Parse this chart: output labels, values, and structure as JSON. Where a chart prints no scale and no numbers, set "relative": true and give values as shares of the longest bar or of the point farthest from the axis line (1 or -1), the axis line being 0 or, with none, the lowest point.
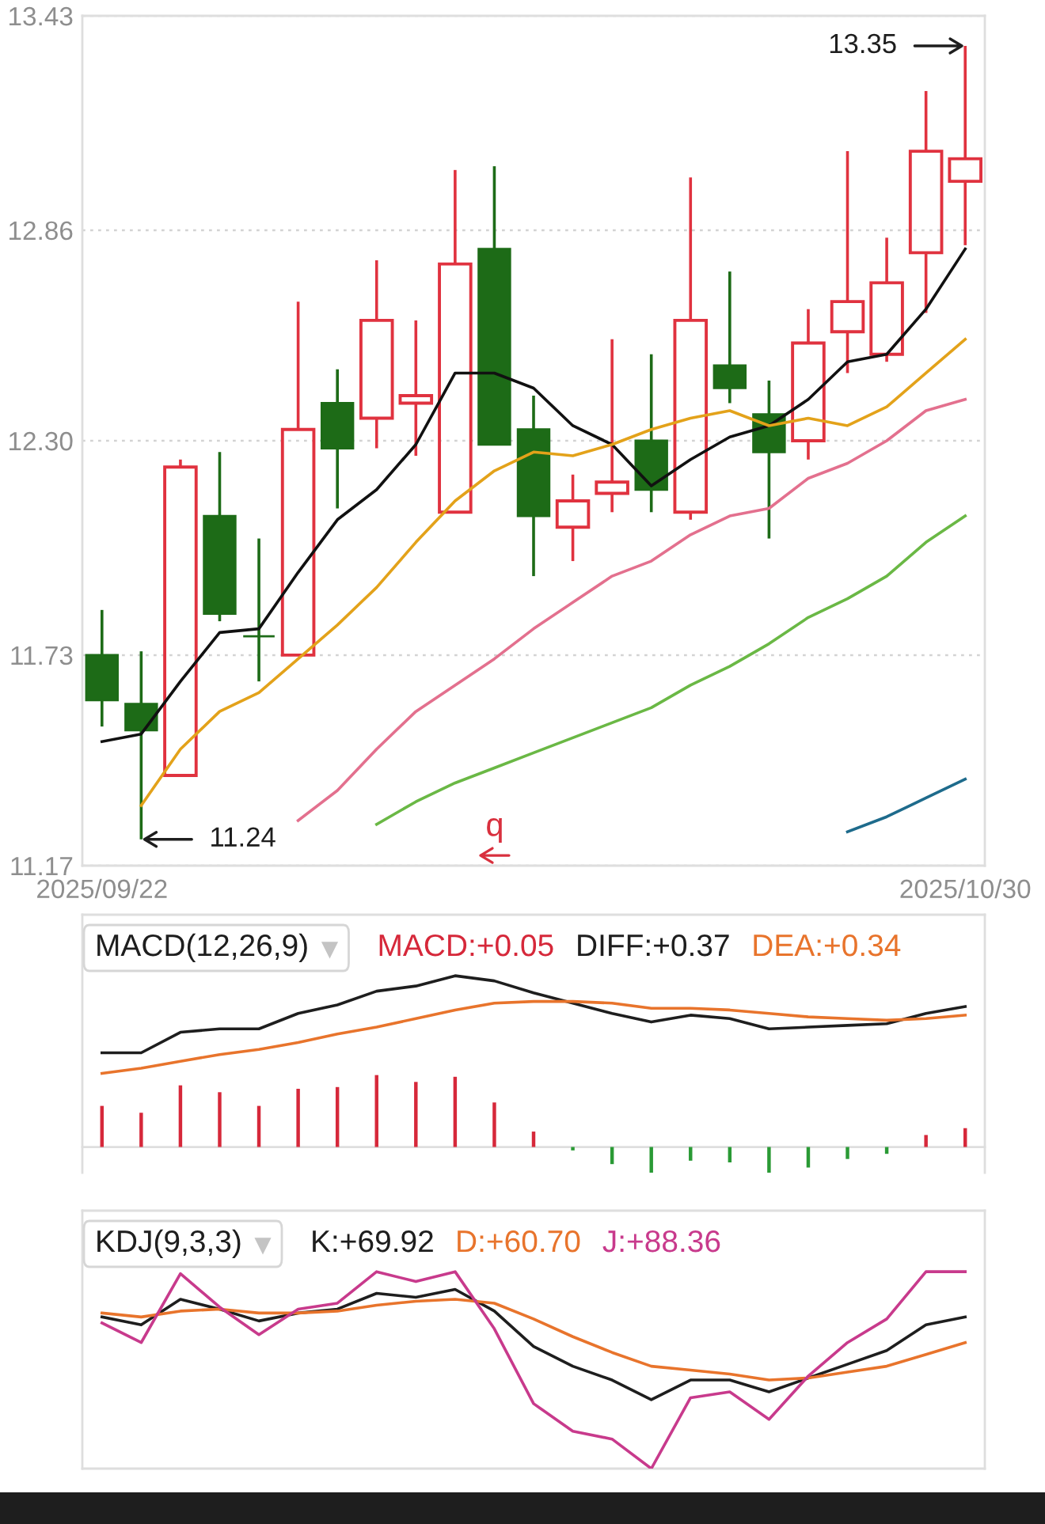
{
  "chart_data": [
    {
      "type": "candlestick",
      "categories": [
        "2025/09/22",
        null,
        null,
        null,
        null,
        null,
        null,
        null,
        null,
        null,
        null,
        null,
        null,
        null,
        null,
        null,
        null,
        null,
        null,
        null,
        null,
        null,
        "2025/10/30"
      ],
      "series": [
        {
          "ohlc": [
            [
              11.73,
              11.85,
              11.54,
              11.61
            ],
            [
              11.6,
              11.74,
              11.24,
              11.53
            ],
            [
              11.41,
              12.25,
              11.41,
              12.23
            ],
            [
              12.1,
              12.27,
              11.82,
              11.84
            ],
            [
              11.78,
              12.04,
              11.66,
              11.78
            ],
            [
              11.73,
              12.67,
              11.73,
              12.33
            ],
            [
              12.4,
              12.49,
              12.12,
              12.28
            ],
            [
              12.36,
              12.78,
              12.28,
              12.62
            ],
            [
              12.4,
              12.62,
              12.26,
              12.42
            ],
            [
              12.11,
              13.02,
              12.11,
              12.77
            ],
            [
              12.81,
              13.03,
              12.29,
              12.29
            ],
            [
              12.33,
              12.42,
              11.94,
              12.1
            ],
            [
              12.07,
              12.21,
              11.98,
              12.14
            ],
            [
              12.16,
              12.57,
              12.11,
              12.19
            ],
            [
              12.3,
              12.53,
              12.11,
              12.17
            ],
            [
              12.11,
              13.0,
              12.09,
              12.62
            ],
            [
              12.5,
              12.75,
              12.4,
              12.44
            ],
            [
              12.37,
              12.46,
              12.04,
              12.27
            ],
            [
              12.3,
              12.65,
              12.25,
              12.56
            ],
            [
              12.59,
              13.07,
              12.48,
              12.67
            ],
            [
              12.53,
              12.84,
              12.51,
              12.72
            ],
            [
              12.8,
              13.23,
              12.64,
              13.07
            ],
            [
              12.99,
              13.35,
              12.82,
              13.05
            ]
          ],
          "colors": [
            "#1d6b17",
            "#1d6b17",
            "#e0323f",
            "#1d6b17",
            "#1d6b17",
            "#e0323f",
            "#1d6b17",
            "#e0323f",
            "#e0323f",
            "#e0323f",
            "#1d6b17",
            "#1d6b17",
            "#e0323f",
            "#e0323f",
            "#1d6b17",
            "#e0323f",
            "#1d6b17",
            "#1d6b17",
            "#e0323f",
            "#e0323f",
            "#e0323f",
            "#e0323f",
            "#e0323f"
          ]
        },
        {
          "type": "line",
          "color": "#111111",
          "values": [
            11.5,
            11.52,
            11.66,
            11.79,
            11.8,
            11.95,
            12.09,
            12.17,
            12.29,
            12.48,
            12.48,
            12.44,
            12.34,
            12.29,
            12.18,
            12.25,
            12.31,
            12.34,
            12.41,
            12.51,
            12.53,
            12.65,
            12.81
          ]
        },
        {
          "type": "line",
          "color": "#e3a21a",
          "values": [
            null,
            11.33,
            11.48,
            11.58,
            11.63,
            11.72,
            11.81,
            11.91,
            12.03,
            12.14,
            12.22,
            12.27,
            12.26,
            12.29,
            12.33,
            12.36,
            12.38,
            12.34,
            12.36,
            12.34,
            12.39,
            12.48,
            12.57
          ]
        },
        {
          "type": "line",
          "color": "#e3708e",
          "values": [
            null,
            null,
            null,
            null,
            null,
            11.29,
            11.37,
            11.48,
            11.58,
            11.65,
            11.72,
            11.8,
            11.87,
            11.94,
            11.98,
            12.05,
            12.1,
            12.12,
            12.2,
            12.24,
            12.3,
            12.38,
            12.41
          ]
        },
        {
          "type": "line",
          "color": "#6ab845",
          "values": [
            null,
            null,
            null,
            null,
            null,
            null,
            null,
            11.28,
            11.34,
            11.39,
            11.43,
            11.47,
            11.51,
            11.55,
            11.59,
            11.65,
            11.7,
            11.76,
            11.83,
            11.88,
            11.94,
            12.03,
            12.1
          ]
        },
        {
          "type": "line",
          "color": "#1e6b8c",
          "values": [
            null,
            null,
            null,
            null,
            null,
            null,
            null,
            null,
            null,
            null,
            null,
            null,
            null,
            null,
            null,
            null,
            null,
            null,
            null,
            11.26,
            11.3,
            11.35,
            11.4
          ]
        }
      ],
      "ylim": [
        11.17,
        13.43
      ],
      "yticks": [
        11.17,
        11.73,
        {
          "value": 12.3,
          "label": "12.30"
        },
        12.86,
        13.43
      ],
      "grid": "y",
      "annotations": [
        {
          "text": "13.35",
          "x": "2025/10/30",
          "y": 13.35
        },
        "11.24",
        "q"
      ]
    },
    {
      "type": "line",
      "title": "MACD(12,26,9)",
      "categories": [
        null,
        null,
        null,
        null,
        null,
        null,
        null,
        null,
        null,
        null,
        null,
        null,
        null,
        null,
        null,
        null,
        null,
        null,
        null,
        null,
        null,
        null,
        null
      ],
      "relative": true,
      "series": [
        {
          "name": "MACD:+0.05",
          "type": "bar",
          "color": "#d6283a",
          "colors": [
            "#d6283a",
            "#d6283a",
            "#d6283a",
            "#d6283a",
            "#d6283a",
            "#d6283a",
            "#d6283a",
            "#d6283a",
            "#d6283a",
            "#d6283a",
            "#d6283a",
            "#d6283a",
            "#2a9a35",
            "#2a9a35",
            "#2a9a35",
            "#2a9a35",
            "#2a9a35",
            "#2a9a35",
            "#2a9a35",
            "#2a9a35",
            "#2a9a35",
            "#d6283a",
            "#d6283a"
          ],
          "values": [
            0.24,
            0.2,
            0.36,
            0.32,
            0.24,
            0.34,
            0.35,
            0.42,
            0.38,
            0.41,
            0.26,
            0.09,
            -0.02,
            -0.1,
            -0.15,
            -0.08,
            -0.09,
            -0.15,
            -0.12,
            -0.07,
            -0.04,
            0.07,
            0.11
          ]
        },
        {
          "name": "DIFF:+0.37",
          "color": "#1e1e1e",
          "values": [
            0.55,
            0.55,
            0.67,
            0.69,
            0.69,
            0.78,
            0.83,
            0.91,
            0.94,
            1.0,
            0.97,
            0.9,
            0.84,
            0.78,
            0.73,
            0.77,
            0.75,
            0.69,
            0.7,
            0.71,
            0.72,
            0.78,
            0.82
          ]
        },
        {
          "name": "DEA:+0.34",
          "color": "#e8742c",
          "values": [
            0.43,
            0.46,
            0.5,
            0.54,
            0.57,
            0.61,
            0.66,
            0.7,
            0.75,
            0.8,
            0.84,
            0.85,
            0.85,
            0.84,
            0.81,
            0.81,
            0.8,
            0.78,
            0.76,
            0.75,
            0.74,
            0.75,
            0.77
          ]
        }
      ]
    },
    {
      "type": "line",
      "title": "KDJ(9,3,3)",
      "categories": [
        null,
        null,
        null,
        null,
        null,
        null,
        null,
        null,
        null,
        null,
        null,
        null,
        null,
        null,
        null,
        null,
        null,
        null,
        null,
        null,
        null,
        null,
        null
      ],
      "relative": true,
      "series": [
        {
          "name": "K:+69.92",
          "color": "#1e1e1e",
          "values": [
            0.77,
            0.73,
            0.86,
            0.81,
            0.75,
            0.79,
            0.81,
            0.89,
            0.87,
            0.91,
            0.8,
            0.62,
            0.52,
            0.45,
            0.35,
            0.45,
            0.45,
            0.39,
            0.46,
            0.53,
            0.6,
            0.73,
            0.77
          ]
        },
        {
          "name": "D:+60.70",
          "color": "#e8742c",
          "values": [
            0.79,
            0.77,
            0.8,
            0.81,
            0.79,
            0.79,
            0.8,
            0.83,
            0.85,
            0.86,
            0.84,
            0.76,
            0.67,
            0.59,
            0.52,
            0.5,
            0.48,
            0.45,
            0.46,
            0.49,
            0.52,
            0.58,
            0.64
          ]
        },
        {
          "name": "J:+88.36",
          "color": "#c83a8c",
          "values": [
            0.74,
            0.64,
            0.99,
            0.82,
            0.68,
            0.81,
            0.84,
            1.0,
            0.95,
            1.0,
            0.71,
            0.33,
            0.19,
            0.15,
            0.0,
            0.36,
            0.39,
            0.25,
            0.47,
            0.64,
            0.76,
            1.0,
            1.0
          ]
        }
      ]
    }
  ]
}
